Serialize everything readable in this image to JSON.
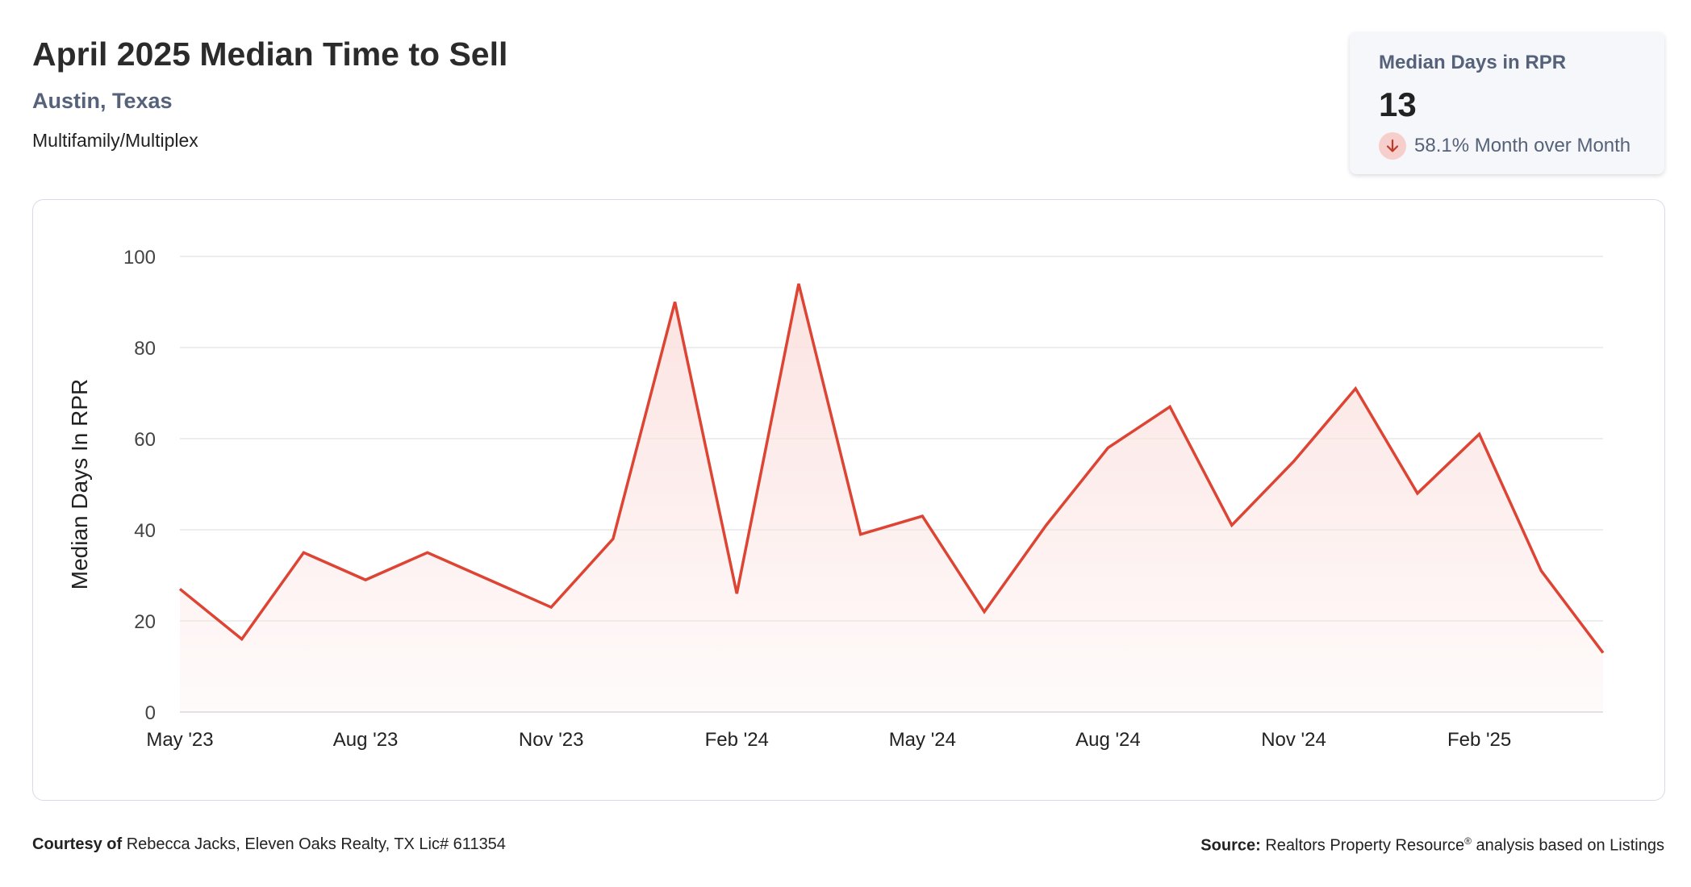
{
  "header": {
    "title": "April 2025 Median Time to Sell",
    "location": "Austin, Texas",
    "property_type": "Multifamily/Multiplex"
  },
  "kpi": {
    "label": "Median Days in RPR",
    "value": "13",
    "change_text": "58.1% Month over Month",
    "direction": "down",
    "icon": "arrow-down-icon"
  },
  "footer": {
    "courtesy_label": "Courtesy of",
    "courtesy_text": "Rebecca Jacks, Eleven Oaks Realty, TX Lic# 611354",
    "source_label": "Source:",
    "source_name": "Realtors Property Resource",
    "source_mark": "®",
    "source_suffix": "analysis based on Listings"
  },
  "colors": {
    "line": "#dd4433",
    "fill": "#fbe3e1",
    "grid": "#e2e2e2",
    "text_muted": "#56627a"
  },
  "chart_data": {
    "type": "area",
    "ylabel": "Median Days In RPR",
    "ylim": [
      0,
      100
    ],
    "yticks": [
      0,
      20,
      40,
      60,
      80,
      100
    ],
    "x": [
      "May '23",
      "Jun '23",
      "Jul '23",
      "Aug '23",
      "Sep '23",
      "Oct '23",
      "Nov '23",
      "Dec '23",
      "Jan '24",
      "Feb '24",
      "Mar '24",
      "Apr '24",
      "May '24",
      "Jun '24",
      "Jul '24",
      "Aug '24",
      "Sep '24",
      "Oct '24",
      "Nov '24",
      "Dec '24",
      "Jan '25",
      "Feb '25",
      "Mar '25",
      "Apr '25"
    ],
    "xtick_labels": [
      "May '23",
      "Aug '23",
      "Nov '23",
      "Feb '24",
      "May '24",
      "Aug '24",
      "Nov '24",
      "Feb '25"
    ],
    "series": [
      {
        "values": [
          27,
          16,
          35,
          29,
          35,
          29,
          23,
          38,
          90,
          26,
          94,
          39,
          43,
          22,
          41,
          58,
          67,
          41,
          55,
          71,
          48,
          61,
          31,
          13
        ]
      }
    ],
    "grid": true,
    "legend": "none"
  }
}
